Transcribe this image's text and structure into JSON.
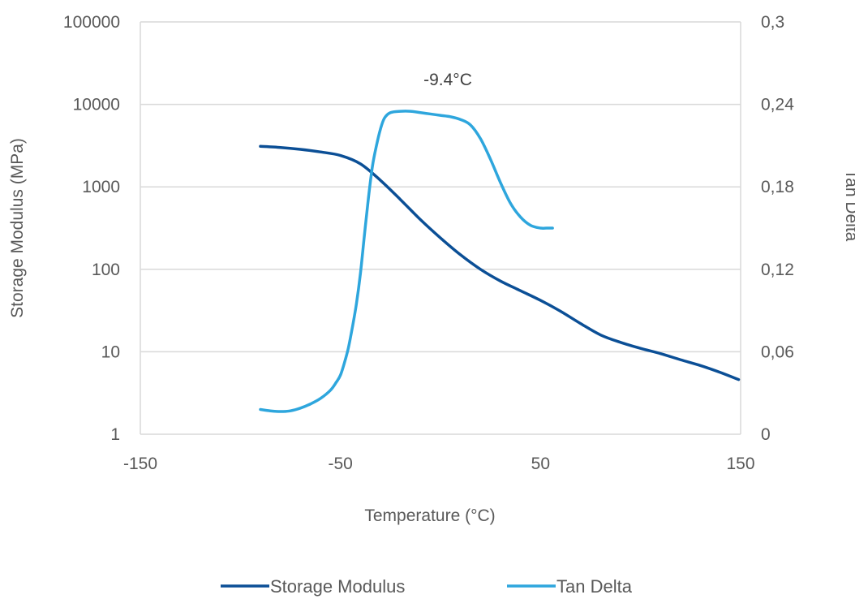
{
  "chart_data": {
    "type": "line",
    "title": "",
    "xlabel": "Temperature (°C)",
    "ylabel_left": "Storage Modulus (MPa)",
    "ylabel_right": "Tan Delta",
    "xlim": [
      -150,
      150
    ],
    "ylim_left": [
      1,
      100000
    ],
    "ylim_right": [
      0,
      0.3
    ],
    "left_log_scale": true,
    "grid": "horizontal",
    "legend_position": "bottom",
    "x_tick_labels": [
      "-150",
      "-50",
      "50",
      "150"
    ],
    "x_tick_values": [
      -150,
      -50,
      50,
      150
    ],
    "y_left_tick_labels": [
      "1",
      "10",
      "100",
      "1000",
      "10000",
      "100000"
    ],
    "y_left_tick_values": [
      1,
      10,
      100,
      1000,
      10000,
      100000
    ],
    "y_right_tick_labels": [
      "0",
      "0,06",
      "0,12",
      "0,18",
      "0,24",
      "0,3"
    ],
    "y_right_tick_values": [
      0,
      0.06,
      0.12,
      0.18,
      0.24,
      0.3
    ],
    "annotation": {
      "text": "-9.4°C",
      "x": -9.4,
      "y_right": 0.257
    },
    "series": [
      {
        "name": "Storage Modulus",
        "axis": "left",
        "color": "#0b4f96",
        "x": [
          -90,
          -80,
          -70,
          -60,
          -50,
          -40,
          -30,
          -20,
          -10,
          0,
          10,
          20,
          30,
          40,
          50,
          60,
          70,
          80,
          90,
          100,
          110,
          120,
          130,
          140,
          149
        ],
        "y": [
          3100,
          3000,
          2850,
          2650,
          2400,
          1900,
          1200,
          700,
          400,
          240,
          150,
          100,
          72,
          55,
          42,
          31,
          22,
          16,
          13,
          11,
          9.5,
          8,
          6.8,
          5.6,
          4.6
        ]
      },
      {
        "name": "Tan Delta",
        "axis": "right",
        "color": "#2ea6dd",
        "x": [
          -90,
          -85,
          -80,
          -75,
          -70,
          -65,
          -60,
          -55,
          -52,
          -50,
          -48,
          -46,
          -44,
          -42,
          -40,
          -38,
          -36,
          -34,
          -32,
          -30,
          -28,
          -25,
          -20,
          -15,
          -10,
          -5,
          0,
          5,
          10,
          15,
          20,
          25,
          30,
          35,
          40,
          45,
          50,
          53,
          56
        ],
        "y": [
          0.018,
          0.017,
          0.0165,
          0.017,
          0.019,
          0.022,
          0.026,
          0.032,
          0.038,
          0.043,
          0.052,
          0.063,
          0.078,
          0.095,
          0.117,
          0.145,
          0.172,
          0.195,
          0.21,
          0.222,
          0.23,
          0.234,
          0.235,
          0.235,
          0.234,
          0.233,
          0.232,
          0.231,
          0.229,
          0.225,
          0.215,
          0.2,
          0.183,
          0.168,
          0.158,
          0.152,
          0.15,
          0.15,
          0.15
        ]
      }
    ]
  }
}
